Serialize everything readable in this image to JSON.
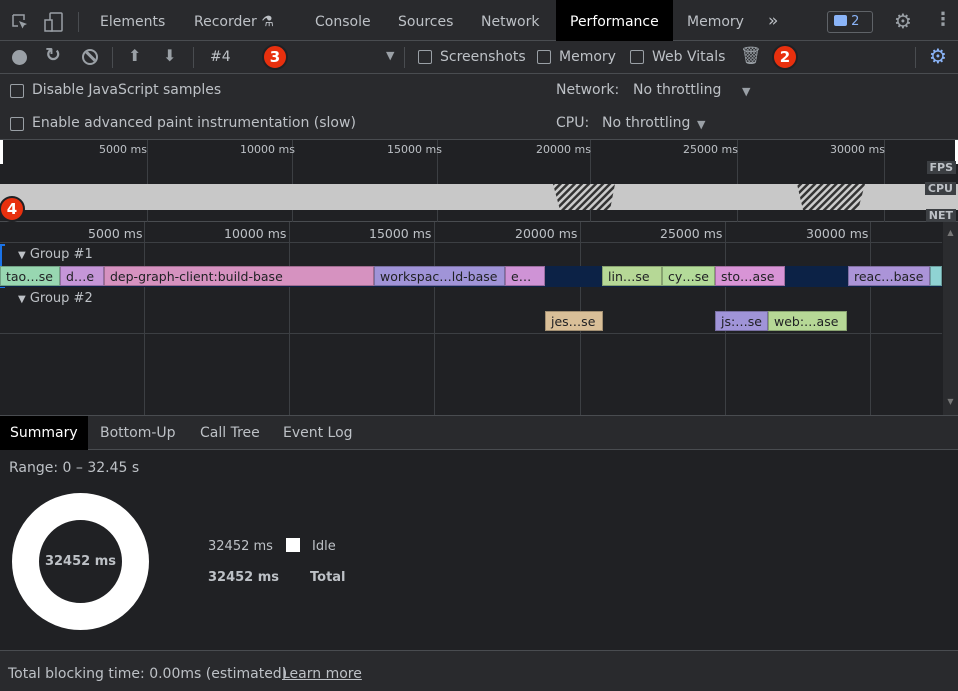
{
  "tabs": {
    "elements": "Elements",
    "recorder": "Recorder",
    "console": "Console",
    "sources": "Sources",
    "network": "Network",
    "performance": "Performance",
    "memory": "Memory",
    "more": "»",
    "issues_count": "2"
  },
  "toolbar": {
    "profile_select": "#4",
    "screenshots": "Screenshots",
    "memory": "Memory",
    "web_vitals": "Web Vitals"
  },
  "settings": {
    "disable_js_samples": "Disable JavaScript samples",
    "advanced_paint": "Enable advanced paint instrumentation (slow)",
    "network_label": "Network:",
    "network_value": "No throttling",
    "cpu_label": "CPU:",
    "cpu_value": "No throttling"
  },
  "overview": {
    "ticks": [
      "5000 ms",
      "10000 ms",
      "15000 ms",
      "20000 ms",
      "25000 ms",
      "30000 ms"
    ],
    "tracks": {
      "fps": "FPS",
      "cpu": "CPU",
      "net": "NET"
    }
  },
  "flame": {
    "ticks": [
      "5000 ms",
      "10000 ms",
      "15000 ms",
      "20000 ms",
      "25000 ms",
      "30000 ms"
    ],
    "group1": {
      "label": "Group #1",
      "bars": [
        "tao…se",
        "d…e",
        "dep-graph-client:build-base",
        "workspac…ld-base",
        "e…",
        "lin…se",
        "cy…se",
        "sto…ase",
        "reac…base"
      ]
    },
    "group2": {
      "label": "Group #2",
      "bars": [
        "jes…se",
        "js:…se",
        "web:…ase"
      ]
    }
  },
  "bottom_tabs": {
    "summary": "Summary",
    "bottom_up": "Bottom-Up",
    "call_tree": "Call Tree",
    "event_log": "Event Log"
  },
  "summary": {
    "range": "Range: 0 – 32.45 s",
    "donut_total": "32452 ms",
    "idle_value": "32452 ms",
    "idle_label": "Idle",
    "total_value": "32452 ms",
    "total_label": "Total"
  },
  "footer": {
    "tbt": "Total blocking time: 0.00ms (estimated)",
    "learn_more": "Learn more"
  },
  "annotations": [
    "2",
    "3",
    "4"
  ],
  "colors": {
    "accent": "#8ab4f8",
    "badge": "#e8300e",
    "idle": "#ffffff"
  }
}
